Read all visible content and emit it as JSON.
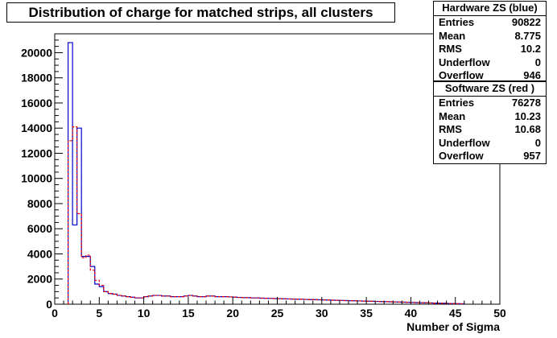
{
  "title": "Distribution of charge for matched strips, all clusters",
  "stats": [
    {
      "header": "Hardware ZS (blue)",
      "rows": [
        {
          "label": "Entries",
          "value": "90822"
        },
        {
          "label": "Mean",
          "value": "8.775"
        },
        {
          "label": "RMS",
          "value": "10.2"
        },
        {
          "label": "Underflow",
          "value": "0"
        },
        {
          "label": "Overflow",
          "value": "946"
        }
      ]
    },
    {
      "header": "Software ZS (red )",
      "rows": [
        {
          "label": "Entries",
          "value": "76278"
        },
        {
          "label": "Mean",
          "value": "10.23"
        },
        {
          "label": "RMS",
          "value": "10.68"
        },
        {
          "label": "Underflow",
          "value": "0"
        },
        {
          "label": "Overflow",
          "value": "957"
        }
      ]
    }
  ],
  "colors": {
    "hardware": "#0000cc",
    "software": "#ee0000",
    "axis": "#000000"
  },
  "chart_data": {
    "type": "histogram",
    "title": "Distribution of charge for matched strips, all clusters",
    "xlabel": "Number of Sigma",
    "ylabel": "",
    "xlim": [
      0,
      50
    ],
    "ylim": [
      0,
      21500
    ],
    "bin_width": 0.5,
    "x_start": 1.5,
    "xticks": [
      0,
      5,
      10,
      15,
      20,
      25,
      30,
      35,
      40,
      45,
      50
    ],
    "yticks": [
      0,
      2000,
      4000,
      6000,
      8000,
      10000,
      12000,
      14000,
      16000,
      18000,
      20000
    ],
    "grid": false,
    "series": [
      {
        "name": "Hardware ZS (blue)",
        "color": "#0000cc",
        "line_style": "solid",
        "values": [
          20800,
          6300,
          14000,
          3800,
          3800,
          3000,
          1600,
          1400,
          1000,
          850,
          800,
          700,
          650,
          600,
          550,
          500,
          500,
          600,
          650,
          700,
          700,
          650,
          650,
          600,
          600,
          600,
          650,
          700,
          650,
          600,
          600,
          650,
          650,
          600,
          600,
          600,
          580,
          560,
          540,
          520,
          520,
          500,
          500,
          480,
          470,
          460,
          450,
          440,
          430,
          420,
          410,
          400,
          390,
          380,
          370,
          360,
          350,
          340,
          330,
          320,
          310,
          300,
          290,
          280,
          270,
          260,
          250,
          240,
          230,
          220,
          210,
          200,
          190,
          180,
          170,
          160,
          150,
          140,
          130,
          120,
          110,
          100,
          90,
          80,
          70,
          60,
          50,
          40,
          30
        ]
      },
      {
        "name": "Software ZS (red )",
        "color": "#ee0000",
        "line_style": "dashed",
        "values": [
          13000,
          14100,
          7200,
          3700,
          3900,
          2700,
          1900,
          1500,
          1000,
          850,
          800,
          700,
          650,
          600,
          550,
          500,
          500,
          600,
          650,
          700,
          700,
          650,
          650,
          600,
          600,
          600,
          650,
          700,
          650,
          600,
          600,
          650,
          650,
          600,
          600,
          600,
          580,
          560,
          540,
          520,
          520,
          500,
          500,
          480,
          470,
          460,
          450,
          440,
          430,
          420,
          410,
          400,
          390,
          380,
          370,
          360,
          350,
          340,
          330,
          320,
          310,
          300,
          290,
          280,
          270,
          260,
          250,
          240,
          230,
          220,
          210,
          200,
          190,
          180,
          170,
          160,
          150,
          140,
          130,
          120,
          110,
          100,
          90,
          80,
          70,
          60,
          50,
          40,
          30
        ]
      }
    ]
  }
}
